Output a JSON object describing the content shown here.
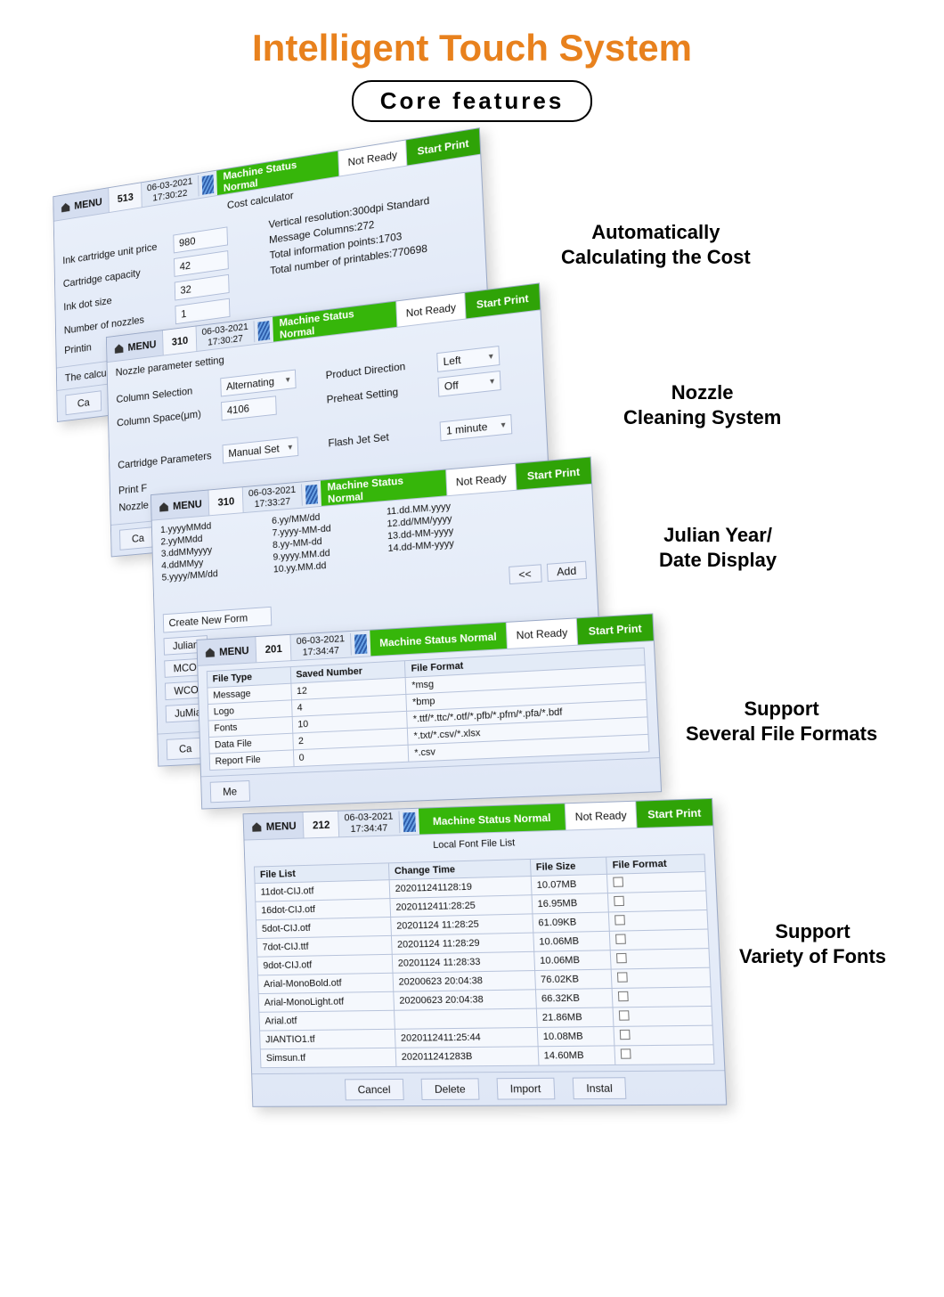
{
  "title": "Intelligent Touch System",
  "subtitle": "Core features",
  "colors": {
    "accent_orange": "#e8811d",
    "status_green": "#36b60a",
    "start_green": "#2fa307"
  },
  "common": {
    "menu": "MENU",
    "status": "Machine Status Normal",
    "ready": "Not Ready",
    "start": "Start Print"
  },
  "captions": {
    "c1a": "Automatically",
    "c1b": "Calculating the Cost",
    "c2a": "Nozzle",
    "c2b": "Cleaning System",
    "c3a": "Julian Year/",
    "c3b": "Date Display",
    "c4a": "Support",
    "c4b": "Several File Formats",
    "c5a": "Support",
    "c5b": "Variety of Fonts"
  },
  "panel1": {
    "count": "513",
    "date": "06-03-2021",
    "time": "17:30:22",
    "title": "Cost calculator",
    "unit_price_lbl": "Ink cartridge unit price",
    "unit_price": "980",
    "capacity_lbl": "Cartridge capacity",
    "capacity": "42",
    "dot_lbl": "Ink dot size",
    "dot": "32",
    "nozzle_lbl": "Number of nozzles",
    "nozzle": "1",
    "printin": "Printin",
    "res": "Vertical resolution:300dpi Standard",
    "cols": "Message Columns:272",
    "points": "Total information points:1703",
    "printables": "Total number of printables:770698",
    "calc": "The calcul",
    "cancel": "Ca"
  },
  "panel2": {
    "count": "310",
    "date": "06-03-2021",
    "time": "17:30:27",
    "title": "Nozzle parameter setting",
    "colsel_lbl": "Column Selection",
    "colsel": "Alternating",
    "colspace_lbl": "Column Space(μm)",
    "colspace": "4106",
    "dir_lbl": "Product Direction",
    "dir": "Left",
    "preheat_lbl": "Preheat Setting",
    "preheat": "Off",
    "cart_lbl": "Cartridge Parameters",
    "cart": "Manual Set",
    "flash_lbl": "Flash Jet Set",
    "flash": "1 minute",
    "printf": "Print F",
    "nozglbl": "Nozzle",
    "cancel": "Ca"
  },
  "panel3": {
    "count": "310",
    "date": "06-03-2021",
    "time": "17:33:27",
    "formats": [
      "1.yyyyMMdd",
      "2.yyMMdd",
      "3.ddMMyyyy",
      "4.ddMMyy",
      "5.yyyy/MM/dd",
      "6.yy/MM/dd",
      "7.yyyy-MM-dd",
      "8.yy-MM-dd",
      "9.yyyy.MM.dd",
      "10.yy.MM.dd",
      "11.dd.MM.yyyy",
      "12.dd/MM/yyyy",
      "13.dd-MM-yyyy",
      "14.dd-MM-yyyy"
    ],
    "create": "Create New Form",
    "back": "<<",
    "add": "Add",
    "julian": "Julian",
    "mcc": "MCO",
    "wcc": "WCO",
    "jumian": "JuMian",
    "cancel": "Ca"
  },
  "panel4": {
    "count": "201",
    "date": "06-03-2021",
    "time": "17:34:47",
    "th1": "File Type",
    "th2": "Saved Number",
    "th3": "File Format",
    "rows": [
      {
        "type": "Message",
        "num": "12",
        "fmt": "*msg"
      },
      {
        "type": "Logo",
        "num": "4",
        "fmt": "*bmp"
      },
      {
        "type": "Fonts",
        "num": "10",
        "fmt": "*.ttf/*.ttc/*.otf/*.pfb/*.pfm/*.pfa/*.bdf"
      },
      {
        "type": "Data File",
        "num": "2",
        "fmt": "*.txt/*.csv/*.xlsx"
      },
      {
        "type": "Report File",
        "num": "0",
        "fmt": "*.csv"
      }
    ],
    "me": "Me"
  },
  "panel5": {
    "count": "212",
    "date": "06-03-2021",
    "time": "17:34:47",
    "title": "Local Font File List",
    "th1": "File List",
    "th2": "Change Time",
    "th3": "File Size",
    "th4": "File Format",
    "rows": [
      {
        "f": "11dot-CIJ.otf",
        "t": "202011241128:19",
        "s": "10.07MB"
      },
      {
        "f": "16dot-CIJ.otf",
        "t": "2020112411:28:25",
        "s": "16.95MB"
      },
      {
        "f": "5dot-CIJ.otf",
        "t": "20201124 11:28:25",
        "s": "61.09KB"
      },
      {
        "f": "7dot-CIJ.ttf",
        "t": "20201124 11:28:29",
        "s": "10.06MB"
      },
      {
        "f": "9dot-CIJ.otf",
        "t": "20201124 11:28:33",
        "s": "10.06MB"
      },
      {
        "f": "Arial-MonoBold.otf",
        "t": "20200623 20:04:38",
        "s": "76.02KB"
      },
      {
        "f": "Arial-MonoLight.otf",
        "t": "20200623 20:04:38",
        "s": "66.32KB"
      },
      {
        "f": "Arial.otf",
        "t": "",
        "s": "21.86MB"
      },
      {
        "f": "JIANTIO1.tf",
        "t": "2020112411:25:44",
        "s": "10.08MB"
      },
      {
        "f": "Simsun.tf",
        "t": "202011241283B",
        "s": "14.60MB"
      }
    ],
    "cancel": "Cancel",
    "delete": "Delete",
    "import": "Import",
    "install": "Instal"
  }
}
